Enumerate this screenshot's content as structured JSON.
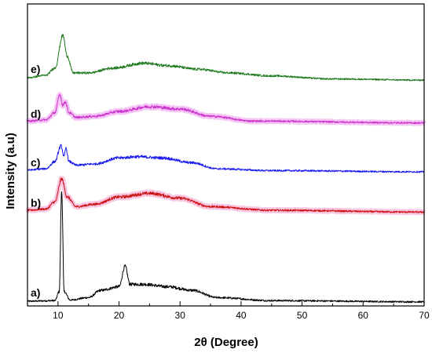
{
  "chart_data": {
    "type": "line",
    "xlabel": "2θ (Degree)",
    "ylabel": "Intensity (a.u)",
    "xlim": [
      5,
      70
    ],
    "xticks": [
      10,
      20,
      30,
      40,
      50,
      60,
      70
    ],
    "yticks_shown": false,
    "legend": "none",
    "series": [
      {
        "label": "a)",
        "color": "#000000",
        "highlight": "",
        "baseline": 0.08,
        "anchors": [
          [
            5,
            0.2
          ],
          [
            9.5,
            0.25
          ],
          [
            10.2,
            1.0
          ],
          [
            10.6,
            9.3
          ],
          [
            11.0,
            1.0
          ],
          [
            12.0,
            0.3
          ],
          [
            15,
            0.5
          ],
          [
            17,
            1.1
          ],
          [
            20,
            1.4
          ],
          [
            21.0,
            3.1
          ],
          [
            21.8,
            1.6
          ],
          [
            24,
            1.6
          ],
          [
            28,
            1.4
          ],
          [
            32,
            1.1
          ],
          [
            36,
            0.5
          ],
          [
            45,
            0.25
          ],
          [
            70,
            0.15
          ]
        ]
      },
      {
        "label": "b)",
        "color": "#cc1111",
        "highlight": "#f7b6d8",
        "baseline": 3.2,
        "anchors": [
          [
            5,
            0.3
          ],
          [
            8,
            0.4
          ],
          [
            9.5,
            1.0
          ],
          [
            10.6,
            2.9
          ],
          [
            11.5,
            1.4
          ],
          [
            13,
            0.6
          ],
          [
            16,
            0.8
          ],
          [
            20,
            1.4
          ],
          [
            25,
            1.7
          ],
          [
            30,
            1.3
          ],
          [
            35,
            0.6
          ],
          [
            45,
            0.3
          ],
          [
            70,
            0.15
          ]
        ]
      },
      {
        "label": "c)",
        "color": "#1a1aee",
        "highlight": "",
        "baseline": 4.6,
        "anchors": [
          [
            5,
            0.3
          ],
          [
            8,
            0.4
          ],
          [
            9.5,
            1.0
          ],
          [
            10.5,
            2.3
          ],
          [
            11.0,
            1.4
          ],
          [
            11.3,
            2.1
          ],
          [
            11.8,
            1.0
          ],
          [
            13,
            0.7
          ],
          [
            16,
            0.8
          ],
          [
            20,
            1.3
          ],
          [
            23,
            1.4
          ],
          [
            27,
            1.3
          ],
          [
            32,
            0.9
          ],
          [
            36,
            0.4
          ],
          [
            45,
            0.25
          ],
          [
            70,
            0.15
          ]
        ]
      },
      {
        "label": "d)",
        "color": "#cc33cc",
        "highlight": "#f2b8f2",
        "baseline": 6.3,
        "anchors": [
          [
            5,
            0.3
          ],
          [
            8,
            0.4
          ],
          [
            9.5,
            1.0
          ],
          [
            10.3,
            2.5
          ],
          [
            10.8,
            1.6
          ],
          [
            11.2,
            1.9
          ],
          [
            11.8,
            1.0
          ],
          [
            13,
            0.6
          ],
          [
            16,
            0.7
          ],
          [
            20,
            1.1
          ],
          [
            25,
            1.5
          ],
          [
            30,
            1.3
          ],
          [
            35,
            0.7
          ],
          [
            42,
            0.3
          ],
          [
            70,
            0.15
          ]
        ]
      },
      {
        "label": "e)",
        "color": "#1f7a1f",
        "highlight": "",
        "baseline": 7.85,
        "anchors": [
          [
            5,
            0.2
          ],
          [
            8,
            0.4
          ],
          [
            9.5,
            1.0
          ],
          [
            10.8,
            3.7
          ],
          [
            11.5,
            2.0
          ],
          [
            12.5,
            0.6
          ],
          [
            15,
            0.6
          ],
          [
            19,
            1.0
          ],
          [
            24,
            1.4
          ],
          [
            28,
            1.2
          ],
          [
            33,
            0.9
          ],
          [
            38,
            0.6
          ],
          [
            45,
            0.35
          ],
          [
            55,
            0.1
          ],
          [
            70,
            0.0
          ]
        ]
      }
    ]
  }
}
